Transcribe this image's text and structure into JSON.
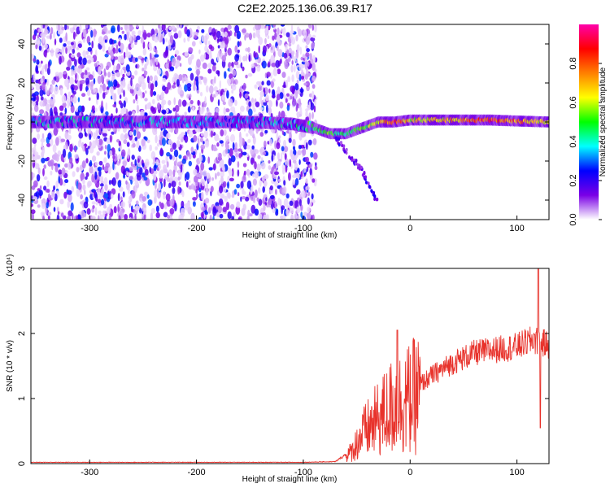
{
  "title": "C2E2.2025.136.06.39.R17",
  "chart_data": [
    {
      "type": "heatmap",
      "xlabel": "Height of straight line (km)",
      "ylabel": "Frequency (Hz)",
      "xlim": [
        -355,
        130
      ],
      "ylim": [
        -50,
        50
      ],
      "xticks": [
        -300,
        -200,
        -100,
        0,
        100
      ],
      "yticks": [
        -40,
        -20,
        0,
        20,
        40
      ],
      "colorbar": {
        "label": "Normalized spectral amplitude",
        "range": [
          0,
          1
        ],
        "ticks": [
          "0.0",
          "0.2",
          "0.4",
          "0.6",
          "0.8"
        ],
        "colors": [
          "#ffffff",
          "#7a00e6",
          "#0000ff",
          "#00ffff",
          "#00ff00",
          "#ffff00",
          "#ff8000",
          "#ff0000",
          "#ff00aa"
        ]
      },
      "ridge": [
        {
          "x": -350,
          "y": 0,
          "amp": 0.35
        },
        {
          "x": -300,
          "y": 0,
          "amp": 0.35
        },
        {
          "x": -200,
          "y": 0,
          "amp": 0.3
        },
        {
          "x": -150,
          "y": 0,
          "amp": 0.3
        },
        {
          "x": -110,
          "y": -1,
          "amp": 0.35
        },
        {
          "x": -90,
          "y": -3,
          "amp": 0.45
        },
        {
          "x": -75,
          "y": -6,
          "amp": 0.5
        },
        {
          "x": -60,
          "y": -6,
          "amp": 0.45
        },
        {
          "x": -45,
          "y": -3,
          "amp": 0.5
        },
        {
          "x": -30,
          "y": 0,
          "amp": 0.6
        },
        {
          "x": -15,
          "y": 0,
          "amp": 0.85
        },
        {
          "x": 0,
          "y": 1,
          "amp": 0.6
        },
        {
          "x": 20,
          "y": 1,
          "amp": 0.65
        },
        {
          "x": 50,
          "y": 1,
          "amp": 0.7
        },
        {
          "x": 75,
          "y": 1,
          "amp": 0.85
        },
        {
          "x": 100,
          "y": 0.5,
          "amp": 0.75
        },
        {
          "x": 130,
          "y": 0,
          "amp": 0.6
        }
      ],
      "branch": [
        {
          "x": -70,
          "y": -8
        },
        {
          "x": -55,
          "y": -18
        },
        {
          "x": -45,
          "y": -25
        },
        {
          "x": -30,
          "y": -42
        }
      ],
      "noise_region_xmax": -88
    },
    {
      "type": "line",
      "xlabel": "Height of straight line (km)",
      "ylabel": "SNR (10 * v/v)",
      "scale_note": "(x10⁴)",
      "xlim": [
        -355,
        130
      ],
      "ylim": [
        0,
        3
      ],
      "xticks": [
        -300,
        -200,
        -100,
        0,
        100
      ],
      "yticks": [
        0,
        1,
        2,
        3
      ],
      "color": "#e8322b",
      "envelope": [
        {
          "x": -355,
          "y": 0.02
        },
        {
          "x": -100,
          "y": 0.02
        },
        {
          "x": -70,
          "y": 0.03
        },
        {
          "x": -55,
          "y": 0.2
        },
        {
          "x": -45,
          "y": 0.5
        },
        {
          "x": -30,
          "y": 0.75
        },
        {
          "x": -15,
          "y": 1.0
        },
        {
          "x": 0,
          "y": 1.1
        },
        {
          "x": 20,
          "y": 1.35
        },
        {
          "x": 40,
          "y": 1.55
        },
        {
          "x": 60,
          "y": 1.7
        },
        {
          "x": 80,
          "y": 1.75
        },
        {
          "x": 100,
          "y": 1.8
        },
        {
          "x": 115,
          "y": 1.9
        },
        {
          "x": 130,
          "y": 1.82
        }
      ],
      "spikes": [
        {
          "x": -12,
          "y": 2.05
        },
        {
          "x": 120,
          "y": 3.0
        },
        {
          "x": 122,
          "y": 0.55
        },
        {
          "x": 116,
          "y": 2.0
        }
      ]
    }
  ]
}
